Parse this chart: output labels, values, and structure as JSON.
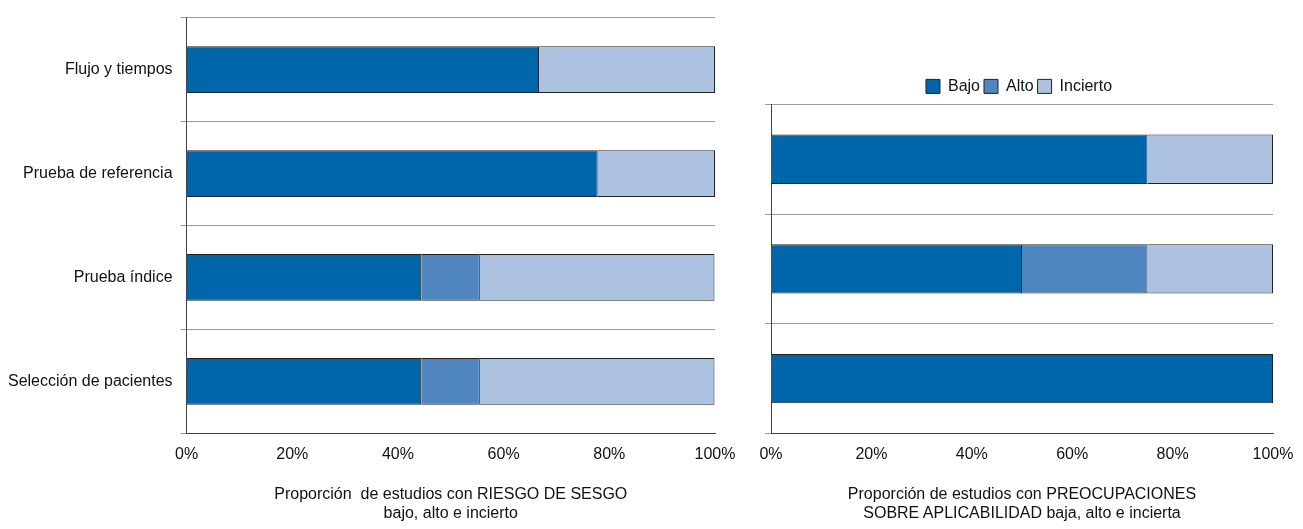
{
  "chart_data": [
    {
      "type": "bar",
      "orientation": "horizontal",
      "stacked": true,
      "categories": [
        "Flujo y tiempos",
        "Prueba de referencia",
        "Prueba índice",
        "Selección de pacientes"
      ],
      "series": [
        {
          "color": "#0066aa",
          "values": [
            66.7,
            77.8,
            44.4,
            44.4
          ]
        },
        {
          "color": "#4f86c0",
          "values": [
            0,
            0,
            11.1,
            11.1
          ]
        },
        {
          "color": "#adc2e1",
          "values": [
            33.3,
            22.2,
            44.4,
            44.4
          ]
        }
      ],
      "xlim": [
        0,
        100
      ],
      "xticks": [
        {
          "value": 0,
          "label": "0%"
        },
        {
          "value": 20,
          "label": "20%"
        },
        {
          "value": 40,
          "label": "40%"
        },
        {
          "value": 60,
          "label": "60%"
        },
        {
          "value": 80,
          "label": "80%"
        },
        {
          "value": 100,
          "label": "100%"
        }
      ],
      "xlabel": "Proporción  de estudios con RIESGO DE SESGO\nbajo, alto e incierto",
      "grid": "y",
      "legend": false
    },
    {
      "type": "bar",
      "orientation": "horizontal",
      "stacked": true,
      "categories": [
        null,
        null,
        null
      ],
      "series": [
        {
          "name": "Bajo",
          "color": "#0066aa",
          "values": [
            75,
            50,
            100
          ]
        },
        {
          "name": "Alto",
          "color": "#4f86c0",
          "values": [
            0,
            25,
            0
          ]
        },
        {
          "name": "Incierto",
          "color": "#adc2e1",
          "values": [
            25,
            25,
            0
          ]
        }
      ],
      "xlim": [
        0,
        100
      ],
      "xticks": [
        {
          "value": 0,
          "label": "0%"
        },
        {
          "value": 20,
          "label": "20%"
        },
        {
          "value": 40,
          "label": "40%"
        },
        {
          "value": 60,
          "label": "60%"
        },
        {
          "value": 80,
          "label": "80%"
        },
        {
          "value": 100,
          "label": "100%"
        }
      ],
      "xlabel": "Proporción de estudios con PREOCUPACIONES\nSOBRE APLICABILIDAD baja, alto e incierta",
      "grid": "y",
      "legend": "top",
      "tick_labels": "x"
    }
  ]
}
